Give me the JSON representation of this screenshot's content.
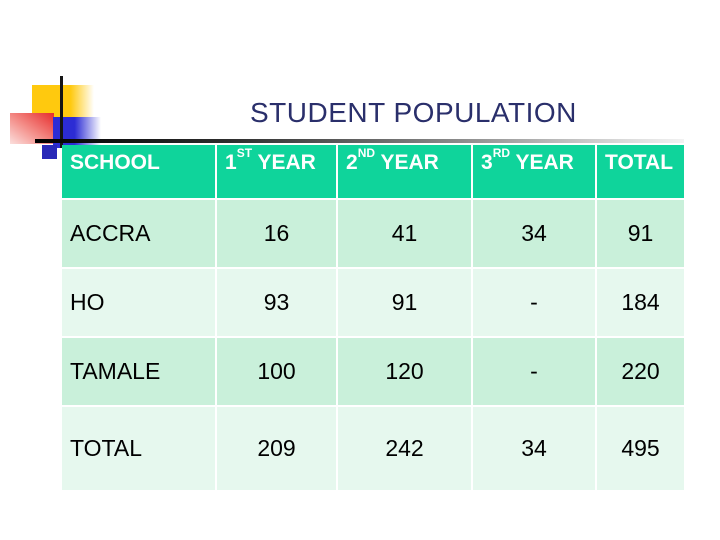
{
  "slide": {
    "title": "STUDENT POPULATION"
  },
  "theme": {
    "title_color": "#2a2f6b",
    "header_bg": "#0fd49b",
    "row_dark_mint": "#c9f0da",
    "row_light_mint": "#e6f8ee",
    "accent_yellow": "#ffc90e",
    "accent_red": "#e62c2c",
    "accent_blue": "#2c2cd4",
    "accent_navy": "#2929b8"
  },
  "decoration": {
    "shapes": [
      "yellow-square",
      "red-gradient-square",
      "blue-gradient-square",
      "navy-square",
      "vertical-line",
      "horizontal-line"
    ]
  },
  "table": {
    "headers": [
      {
        "base": "SCHOOL",
        "sup": "",
        "rest": ""
      },
      {
        "base": "1",
        "sup": "ST",
        "rest": " YEAR"
      },
      {
        "base": "2",
        "sup": "ND",
        "rest": " YEAR"
      },
      {
        "base": "3",
        "sup": "RD",
        "rest": " YEAR"
      },
      {
        "base": "TOTAL",
        "sup": "",
        "rest": ""
      }
    ],
    "rows": [
      {
        "school": "ACCRA",
        "values": [
          "16",
          "41",
          "34",
          "91"
        ]
      },
      {
        "school": "HO",
        "values": [
          "93",
          "91",
          "-",
          "184"
        ]
      },
      {
        "school": "TAMALE",
        "values": [
          "100",
          "120",
          "-",
          "220"
        ]
      },
      {
        "school": "TOTAL",
        "values": [
          "209",
          "242",
          "34",
          "495"
        ]
      }
    ]
  }
}
